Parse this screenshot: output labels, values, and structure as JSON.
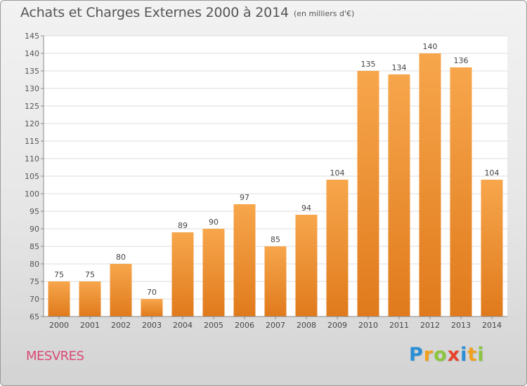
{
  "header": {
    "title": "Achats et Charges Externes 2000 à 2014",
    "unit_note": "(en milliers d'€)"
  },
  "footer": {
    "commune": "MESVRES",
    "logo_letters": [
      {
        "char": "P",
        "color": "#2a8fd6"
      },
      {
        "char": "r",
        "color": "#f0a11c"
      },
      {
        "char": "o",
        "color": "#8cc63f"
      },
      {
        "char": "x",
        "color": "#e8432b"
      },
      {
        "char": "i",
        "color": "#2a8fd6"
      },
      {
        "char": "t",
        "color": "#f0a11c"
      },
      {
        "char": "i",
        "color": "#8cc63f"
      }
    ]
  },
  "chart_data": {
    "type": "bar",
    "categories": [
      "2000",
      "2001",
      "2002",
      "2003",
      "2004",
      "2005",
      "2006",
      "2007",
      "2008",
      "2009",
      "2010",
      "2011",
      "2012",
      "2013",
      "2014"
    ],
    "values": [
      75,
      75,
      80,
      70,
      89,
      90,
      97,
      85,
      94,
      104,
      135,
      134,
      140,
      136,
      104
    ],
    "ylim": [
      65,
      145
    ],
    "yticks": [
      65,
      70,
      75,
      80,
      85,
      90,
      95,
      100,
      105,
      110,
      115,
      120,
      125,
      130,
      135,
      140,
      145
    ],
    "grid": true,
    "bar_color": "#f29a3f",
    "bar_color_dark": "#e27a1f"
  }
}
